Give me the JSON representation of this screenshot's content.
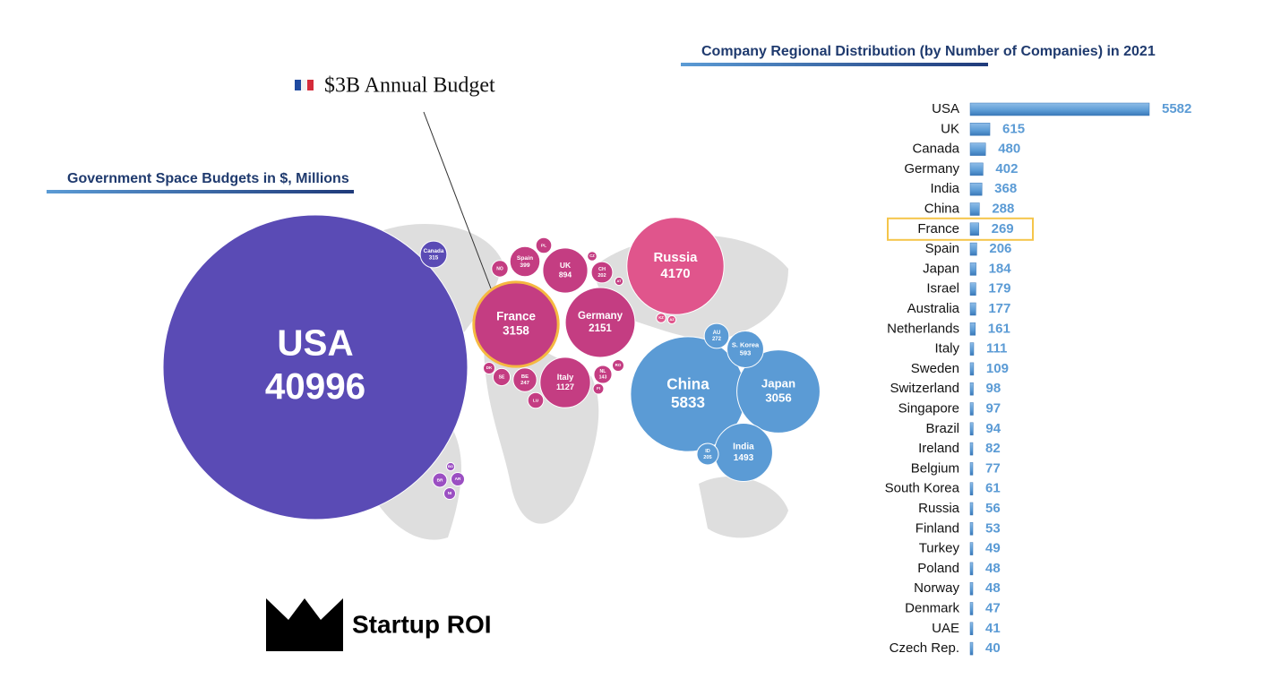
{
  "brand": "Startup ROI",
  "chart_data": [
    {
      "type": "bubble",
      "title": "Government Space Budgets in $, Millions",
      "annotation": "$3B Annual Budget",
      "highlight": 2,
      "categories": [
        "USA",
        "Canada",
        "France",
        "Germany",
        "UK",
        "Spain",
        "Italy",
        "NL",
        "BE",
        "CH",
        "PL",
        "NO",
        "SE",
        "DK",
        "LU",
        "FI",
        "RO",
        "Russia",
        "KZ",
        "AZ",
        "China",
        "Japan",
        "India",
        "AU",
        "S. Korea",
        "ID",
        "BR",
        "AR",
        "NI",
        "BO",
        "CZ",
        "AT"
      ],
      "values": [
        40996,
        315,
        3158,
        2151,
        894,
        399,
        1127,
        143,
        247,
        202,
        110,
        120,
        130,
        60,
        110,
        50,
        60,
        4170,
        40,
        30,
        5833,
        3056,
        1493,
        272,
        593,
        205,
        90,
        80,
        60,
        30,
        40,
        30
      ],
      "value_labels": [
        "40996",
        "315",
        "3158",
        "2151",
        "894",
        "399",
        "1127",
        "143",
        "247",
        "202",
        null,
        null,
        null,
        null,
        null,
        null,
        null,
        "4170",
        null,
        null,
        "5833",
        "3056",
        "1493",
        "272",
        "593",
        "205",
        null,
        null,
        null,
        null,
        null,
        null
      ],
      "colors": [
        "#5a4bb5",
        "#5a4bb5",
        "#c43d82",
        "#c43d82",
        "#c43d82",
        "#c43d82",
        "#c43d82",
        "#c43d82",
        "#c43d82",
        "#c43d82",
        "#c43d82",
        "#c43d82",
        "#c43d82",
        "#c43d82",
        "#c43d82",
        "#c43d82",
        "#c43d82",
        "#e0558c",
        "#e0558c",
        "#e0558c",
        "#5b9bd5",
        "#5b9bd5",
        "#5b9bd5",
        "#5b9bd5",
        "#5b9bd5",
        "#5b9bd5",
        "#9b4fc2",
        "#9b4fc2",
        "#9b4fc2",
        "#9b4fc2",
        "#c43d82",
        "#c43d82"
      ]
    },
    {
      "type": "hbar",
      "title": "Company Regional Distribution (by Number of Companies) in 2021",
      "color": "#5b9bd5",
      "highlight": 6,
      "categories": [
        "USA",
        "UK",
        "Canada",
        "Germany",
        "India",
        "China",
        "France",
        "Spain",
        "Japan",
        "Israel",
        "Australia",
        "Netherlands",
        "Italy",
        "Sweden",
        "Switzerland",
        "Singapore",
        "Brazil",
        "Ireland",
        "Belgium",
        "South Korea",
        "Russia",
        "Finland",
        "Turkey",
        "Poland",
        "Norway",
        "Denmark",
        "UAE",
        "Czech Rep."
      ],
      "values": [
        5582,
        615,
        480,
        402,
        368,
        288,
        269,
        206,
        184,
        179,
        177,
        161,
        111,
        109,
        98,
        97,
        94,
        82,
        77,
        61,
        56,
        53,
        49,
        48,
        48,
        47,
        41,
        40
      ]
    }
  ]
}
